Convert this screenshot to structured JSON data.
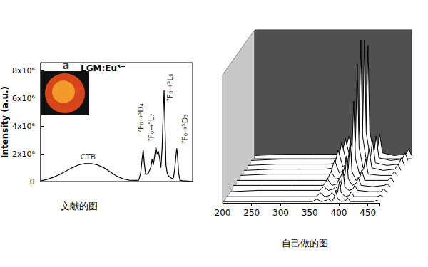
{
  "chart_data": [
    {
      "type": "line",
      "title": "LGM:Eu³⁺",
      "subtitle": "文献的图",
      "y_label": "Intensity (a.u.)",
      "color": "#000000",
      "tick_labels": "y",
      "xlim": [
        200,
        440
      ],
      "ylim": [
        0,
        8600000
      ],
      "yticks": [
        0,
        {
          "value": 2000000,
          "label": "2x10⁶"
        },
        {
          "value": 4000000,
          "label": "4x10⁶"
        },
        {
          "value": 6000000,
          "label": "6x10⁶"
        },
        {
          "value": 8000000,
          "label": "8x10⁶"
        }
      ],
      "x": [
        200,
        210,
        220,
        230,
        240,
        250,
        260,
        270,
        280,
        290,
        300,
        310,
        320,
        330,
        340,
        350,
        355,
        358,
        360,
        362,
        364,
        366,
        370,
        374,
        376,
        378,
        380,
        382,
        384,
        386,
        388,
        390,
        392,
        394,
        395,
        396,
        398,
        400,
        402,
        405,
        408,
        410,
        412,
        414,
        415,
        416,
        418,
        420,
        425,
        430,
        435,
        440
      ],
      "values": [
        50000,
        150000,
        300000,
        500000,
        750000,
        1000000,
        1200000,
        1300000,
        1300000,
        1200000,
        1000000,
        700000,
        400000,
        200000,
        100000,
        80000,
        100000,
        600000,
        1500000,
        2300000,
        1200000,
        500000,
        600000,
        1000000,
        1600000,
        1200000,
        1800000,
        2500000,
        2000000,
        2200000,
        1700000,
        1000000,
        2500000,
        5500000,
        6600000,
        5000000,
        1200000,
        600000,
        400000,
        300000,
        200000,
        300000,
        1000000,
        2000000,
        2400000,
        2000000,
        600000,
        100000,
        50000,
        50000,
        20000,
        10000
      ],
      "annotations": [
        {
          "text": "a",
          "x": 240,
          "y": 8400000
        },
        {
          "text": "CTB",
          "x": 275,
          "y": 1800000
        },
        {
          "text": "⁷F₀→⁵D₄",
          "x": 358,
          "y": 4600000
        },
        {
          "text": "⁷F₀→⁵L₇",
          "x": 375,
          "y": 3900000
        },
        {
          "text": "⁷F₀→⁵L₆",
          "x": 405,
          "y": 6800000
        },
        {
          "text": "⁷F₀→⁵D₃",
          "x": 428,
          "y": 3800000
        }
      ]
    },
    {
      "type": "waterfall",
      "subtitle": "自己做的图",
      "color": "#000000",
      "tick_labels": "x",
      "xlim": [
        200,
        470
      ],
      "xticks": [
        200,
        250,
        300,
        350,
        400,
        450
      ],
      "ylim": [
        0,
        100
      ],
      "x": [
        200,
        250,
        300,
        340,
        355,
        362,
        370,
        378,
        382,
        388,
        392,
        395,
        398,
        405,
        412,
        415,
        420,
        440,
        460,
        465,
        470
      ],
      "series": [
        {
          "values": [
            1,
            1,
            1,
            1,
            1,
            3,
            1,
            2,
            3,
            1,
            4,
            10,
            3,
            1,
            2,
            4,
            1,
            1,
            1,
            2,
            1
          ]
        },
        {
          "values": [
            1,
            1,
            1,
            1,
            1,
            4,
            1,
            2,
            4,
            1,
            5,
            13,
            4,
            1,
            2,
            5,
            1,
            1,
            1,
            2,
            1
          ]
        },
        {
          "values": [
            1,
            2,
            2,
            2,
            2,
            5,
            2,
            3,
            5,
            2,
            7,
            18,
            5,
            2,
            3,
            6,
            2,
            1,
            1,
            3,
            1
          ]
        },
        {
          "values": [
            2,
            2,
            2,
            2,
            2,
            7,
            2,
            3,
            7,
            2,
            9,
            25,
            7,
            2,
            4,
            8,
            2,
            1,
            2,
            3,
            1
          ]
        },
        {
          "values": [
            2,
            2,
            2,
            2,
            2,
            9,
            3,
            4,
            9,
            3,
            12,
            35,
            9,
            2,
            5,
            10,
            2,
            2,
            2,
            4,
            1
          ]
        },
        {
          "values": [
            2,
            3,
            3,
            3,
            3,
            14,
            4,
            6,
            15,
            4,
            20,
            60,
            15,
            3,
            7,
            15,
            3,
            2,
            2,
            5,
            2
          ]
        },
        {
          "values": [
            2,
            3,
            3,
            3,
            4,
            18,
            5,
            7,
            20,
            5,
            27,
            85,
            20,
            4,
            9,
            19,
            4,
            2,
            3,
            7,
            2
          ]
        },
        {
          "values": [
            2,
            3,
            3,
            3,
            4,
            20,
            5,
            8,
            22,
            6,
            30,
            100,
            25,
            4,
            10,
            22,
            4,
            2,
            3,
            8,
            2
          ]
        },
        {
          "values": [
            2,
            3,
            3,
            3,
            4,
            19,
            5,
            8,
            21,
            6,
            29,
            96,
            24,
            4,
            10,
            21,
            4,
            2,
            3,
            8,
            2
          ]
        },
        {
          "values": [
            2,
            3,
            3,
            3,
            4,
            17,
            5,
            7,
            19,
            5,
            26,
            88,
            21,
            4,
            9,
            19,
            4,
            2,
            3,
            7,
            2
          ]
        }
      ]
    }
  ]
}
